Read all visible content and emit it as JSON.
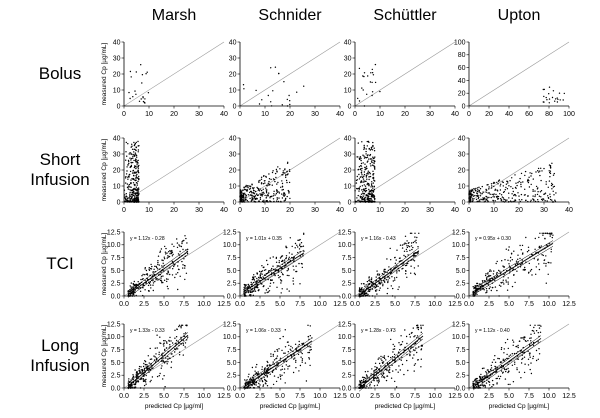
{
  "figure": {
    "column_titles": [
      "Marsh",
      "Schnider",
      "Schüttler",
      "Upton"
    ],
    "row_titles": [
      [
        "Bolus"
      ],
      [
        "Short",
        "Infusion"
      ],
      [
        "TCI"
      ],
      [
        "Long",
        "Infusion"
      ]
    ],
    "ylabel": "measured Cp [µg/mL]",
    "xlabels": [
      "predicted Cp [µg/ml]",
      "predicted Cp [µg/mL]",
      "predicted Cp [µg/mL]",
      "predicted Cp [µg/mL]"
    ]
  },
  "chart_data": [
    {
      "type": "scatter",
      "model": "Marsh",
      "regimen": "Bolus",
      "xlim": [
        0,
        40
      ],
      "ylim": [
        0,
        40
      ],
      "xticks": [
        "0",
        "10",
        "20",
        "30",
        "40"
      ],
      "yticks": [
        "0",
        "10",
        "20",
        "30",
        "40"
      ],
      "identity_line": true,
      "cluster": {
        "x_range": [
          1,
          10
        ],
        "y_range": [
          0,
          26
        ]
      }
    },
    {
      "type": "scatter",
      "model": "Schnider",
      "regimen": "Bolus",
      "xlim": [
        0,
        40
      ],
      "ylim": [
        0,
        40
      ],
      "xticks": [
        "0",
        "10",
        "20",
        "30",
        "40"
      ],
      "yticks": [
        "0",
        "10",
        "20",
        "30",
        "40"
      ],
      "identity_line": true,
      "cluster": {
        "x_range": [
          1,
          28
        ],
        "y_range": [
          0,
          26
        ]
      }
    },
    {
      "type": "scatter",
      "model": "Schüttler",
      "regimen": "Bolus",
      "xlim": [
        0,
        40
      ],
      "ylim": [
        0,
        40
      ],
      "xticks": [
        "0",
        "10",
        "20",
        "30",
        "40"
      ],
      "yticks": [
        "0",
        "10",
        "20",
        "30",
        "40"
      ],
      "identity_line": true,
      "cluster": {
        "x_range": [
          1,
          10
        ],
        "y_range": [
          0,
          26
        ]
      }
    },
    {
      "type": "scatter",
      "model": "Upton",
      "regimen": "Bolus",
      "xlim": [
        0,
        100
      ],
      "ylim": [
        0,
        100
      ],
      "xticks": [
        "0",
        "20",
        "40",
        "60",
        "80",
        "100"
      ],
      "yticks": [
        "0",
        "20",
        "40",
        "60",
        "80",
        "100"
      ],
      "identity_line": true,
      "cluster": {
        "x_range": [
          72,
          96
        ],
        "y_range": [
          5,
          30
        ]
      }
    },
    {
      "type": "scatter",
      "model": "Marsh",
      "regimen": "Short Infusion",
      "xlim": [
        0,
        40
      ],
      "ylim": [
        0,
        40
      ],
      "xticks": [
        "0",
        "10",
        "20",
        "30",
        "40"
      ],
      "yticks": [
        "0",
        "10",
        "20",
        "30",
        "40"
      ],
      "identity_line": true,
      "cluster": {
        "x_range": [
          0,
          6
        ],
        "y_range": [
          0,
          38
        ]
      }
    },
    {
      "type": "scatter",
      "model": "Schnider",
      "regimen": "Short Infusion",
      "xlim": [
        0,
        40
      ],
      "ylim": [
        0,
        40
      ],
      "xticks": [
        "0",
        "10",
        "20",
        "30",
        "40"
      ],
      "yticks": [
        "0",
        "10",
        "20",
        "30",
        "40"
      ],
      "identity_line": true,
      "cluster": {
        "x_range": [
          0,
          20
        ],
        "y_range": [
          0,
          32
        ]
      }
    },
    {
      "type": "scatter",
      "model": "Schüttler",
      "regimen": "Short Infusion",
      "xlim": [
        0,
        40
      ],
      "ylim": [
        0,
        40
      ],
      "xticks": [
        "0",
        "10",
        "20",
        "30",
        "40"
      ],
      "yticks": [
        "0",
        "10",
        "20",
        "30",
        "40"
      ],
      "identity_line": true,
      "cluster": {
        "x_range": [
          0,
          8
        ],
        "y_range": [
          0,
          38
        ]
      }
    },
    {
      "type": "scatter",
      "model": "Upton",
      "regimen": "Short Infusion",
      "xlim": [
        0,
        40
      ],
      "ylim": [
        0,
        40
      ],
      "xticks": [
        "0",
        "10",
        "20",
        "30",
        "40"
      ],
      "yticks": [
        "0",
        "10",
        "20",
        "30",
        "40"
      ],
      "identity_line": true,
      "cluster": {
        "x_range": [
          0,
          35
        ],
        "y_range": [
          0,
          30
        ]
      }
    },
    {
      "type": "scatter",
      "model": "Marsh",
      "regimen": "TCI",
      "xlim": [
        0,
        12.5
      ],
      "ylim": [
        0,
        12.5
      ],
      "xticks": [
        "0.0",
        "2.5",
        "5.0",
        "7.5",
        "10.0",
        "12.5"
      ],
      "yticks": [
        "0.0",
        "2.5",
        "5.0",
        "7.5",
        "10.0",
        "12.5"
      ],
      "identity_line": true,
      "regression": {
        "slope": 1.12,
        "intercept": -0.28,
        "label": "y = 1.12x - 0.28"
      },
      "cluster": {
        "x_range": [
          0.5,
          8
        ],
        "y_range": [
          0,
          11
        ]
      }
    },
    {
      "type": "scatter",
      "model": "Schnider",
      "regimen": "TCI",
      "xlim": [
        0,
        12.5
      ],
      "ylim": [
        0,
        12.5
      ],
      "xticks": [
        "0.0",
        "2.5",
        "5.0",
        "7.5",
        "10.0",
        "12.5"
      ],
      "yticks": [
        "0.0",
        "2.5",
        "5.0",
        "7.5",
        "10.0",
        "12.5"
      ],
      "identity_line": true,
      "regression": {
        "slope": 1.01,
        "intercept": 0.35,
        "label": "y = 1.01x + 0.35"
      },
      "cluster": {
        "x_range": [
          0.5,
          8
        ],
        "y_range": [
          0,
          11
        ]
      }
    },
    {
      "type": "scatter",
      "model": "Schüttler",
      "regimen": "TCI",
      "xlim": [
        0,
        12.5
      ],
      "ylim": [
        0,
        12.5
      ],
      "xticks": [
        "0.0",
        "2.5",
        "5.0",
        "7.5",
        "10.0",
        "12.5"
      ],
      "yticks": [
        "0.0",
        "2.5",
        "5.0",
        "7.5",
        "10.0",
        "12.5"
      ],
      "identity_line": true,
      "regression": {
        "slope": 1.16,
        "intercept": -0.43,
        "label": "y = 1.16x - 0.43"
      },
      "cluster": {
        "x_range": [
          0.5,
          8
        ],
        "y_range": [
          0,
          11
        ]
      }
    },
    {
      "type": "scatter",
      "model": "Upton",
      "regimen": "TCI",
      "xlim": [
        0,
        12.5
      ],
      "ylim": [
        0,
        12.5
      ],
      "xticks": [
        "0.0",
        "2.5",
        "5.0",
        "7.5",
        "10.0",
        "12.5"
      ],
      "yticks": [
        "0.0",
        "2.5",
        "5.0",
        "7.5",
        "10.0",
        "12.5"
      ],
      "identity_line": true,
      "regression": {
        "slope": 0.95,
        "intercept": 0.3,
        "label": "y = 0.95x + 0.30"
      },
      "cluster": {
        "x_range": [
          0.5,
          10.5
        ],
        "y_range": [
          0,
          11
        ]
      }
    },
    {
      "type": "scatter",
      "model": "Marsh",
      "regimen": "Long Infusion",
      "xlim": [
        0,
        12.5
      ],
      "ylim": [
        0,
        12.5
      ],
      "xticks": [
        "0.0",
        "2.5",
        "5.0",
        "7.5",
        "10.0",
        "12.5"
      ],
      "yticks": [
        "0.0",
        "2.5",
        "5.0",
        "7.5",
        "10.0",
        "12.5"
      ],
      "identity_line": true,
      "regression": {
        "slope": 1.33,
        "intercept": -0.33,
        "label": "y = 1.33x - 0.33"
      },
      "cluster": {
        "x_range": [
          0.5,
          8
        ],
        "y_range": [
          0,
          11.5
        ]
      }
    },
    {
      "type": "scatter",
      "model": "Schnider",
      "regimen": "Long Infusion",
      "xlim": [
        0,
        12.5
      ],
      "ylim": [
        0,
        12.5
      ],
      "xticks": [
        "0.0",
        "2.5",
        "5.0",
        "7.5",
        "10.0",
        "12.5"
      ],
      "yticks": [
        "0.0",
        "2.5",
        "5.0",
        "7.5",
        "10.0",
        "12.5"
      ],
      "identity_line": true,
      "regression": {
        "slope": 1.06,
        "intercept": -0.33,
        "label": "y = 1.06x - 0.33"
      },
      "cluster": {
        "x_range": [
          0.5,
          9
        ],
        "y_range": [
          0,
          11
        ]
      }
    },
    {
      "type": "scatter",
      "model": "Schüttler",
      "regimen": "Long Infusion",
      "xlim": [
        0,
        12.5
      ],
      "ylim": [
        0,
        12.5
      ],
      "xticks": [
        "0.0",
        "2.5",
        "5.0",
        "7.5",
        "10.0",
        "12.5"
      ],
      "yticks": [
        "0.0",
        "2.5",
        "5.0",
        "7.5",
        "10.0",
        "12.5"
      ],
      "identity_line": true,
      "regression": {
        "slope": 1.28,
        "intercept": -0.73,
        "label": "y = 1.28x - 0.73"
      },
      "cluster": {
        "x_range": [
          0.5,
          8.5
        ],
        "y_range": [
          0,
          11.5
        ]
      }
    },
    {
      "type": "scatter",
      "model": "Upton",
      "regimen": "Long Infusion",
      "xlim": [
        0,
        12.5
      ],
      "ylim": [
        0,
        12.5
      ],
      "xticks": [
        "0.0",
        "2.5",
        "5.0",
        "7.5",
        "10.0",
        "12.5"
      ],
      "yticks": [
        "0.0",
        "2.5",
        "5.0",
        "7.5",
        "10.0",
        "12.5"
      ],
      "identity_line": true,
      "regression": {
        "slope": 1.12,
        "intercept": -0.4,
        "label": "y = 1.12x - 0.40"
      },
      "cluster": {
        "x_range": [
          0.5,
          9
        ],
        "y_range": [
          0,
          11.5
        ]
      }
    }
  ]
}
